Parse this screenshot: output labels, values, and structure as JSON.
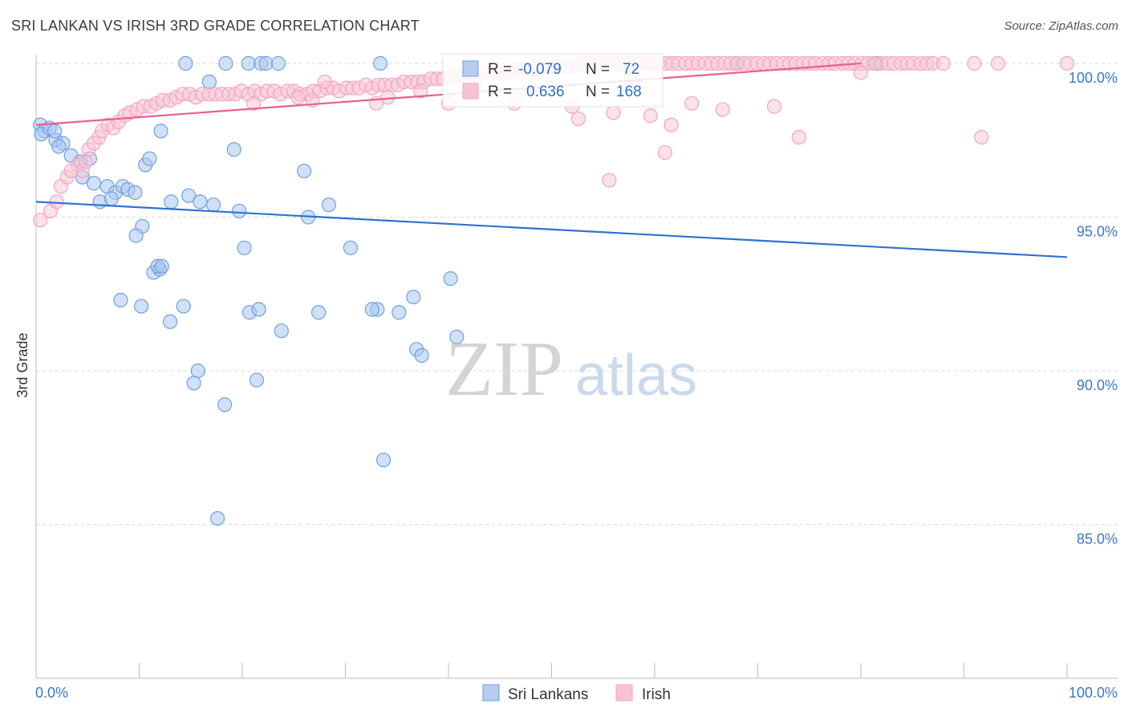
{
  "title": "SRI LANKAN VS IRISH 3RD GRADE CORRELATION CHART",
  "source": "Source: ZipAtlas.com",
  "watermark": {
    "zip": "ZIP",
    "atlas": "atlas"
  },
  "colors": {
    "blue": "#6fa0e0",
    "blue_line": "#2f72d0",
    "pink": "#f2a5bf",
    "pink_line": "#e8608c",
    "axis_text": "#3a78c8"
  },
  "stats": {
    "r_label": "R =",
    "n_label": "N =",
    "blue": {
      "r": "-0.079",
      "n": "72"
    },
    "pink": {
      "r": "0.636",
      "n": "168"
    }
  },
  "chart_data": {
    "type": "scatter",
    "ylabel": "3rd Grade",
    "xlim": [
      0,
      100
    ],
    "ylim": [
      80,
      100
    ],
    "y_ticks": [
      {
        "value": 100,
        "label": "100.0%"
      },
      {
        "value": 95,
        "label": "95.0%"
      },
      {
        "value": 90,
        "label": "90.0%"
      },
      {
        "value": 85,
        "label": "85.0%"
      }
    ],
    "x_ticks": [
      {
        "value": 0,
        "label": "0.0%"
      },
      {
        "value": 100,
        "label": "100.0%"
      }
    ],
    "legend": [
      {
        "name": "Sri Lankans",
        "color": "#6fa0e0"
      },
      {
        "name": "Irish",
        "color": "#f2a5bf"
      }
    ],
    "series": [
      {
        "name": "Sri Lankans",
        "trend": {
          "x": [
            0,
            100
          ],
          "y": [
            95.5,
            93.7
          ]
        },
        "points": [
          [
            0.4,
            98.0
          ],
          [
            0.8,
            97.8
          ],
          [
            0.5,
            97.7
          ],
          [
            1.3,
            97.9
          ],
          [
            1.9,
            97.5
          ],
          [
            2.6,
            97.4
          ],
          [
            2.2,
            97.3
          ],
          [
            3.4,
            97.0
          ],
          [
            4.3,
            96.8
          ],
          [
            5.2,
            96.9
          ],
          [
            4.5,
            96.3
          ],
          [
            5.6,
            96.1
          ],
          [
            6.9,
            96.0
          ],
          [
            7.7,
            95.8
          ],
          [
            8.4,
            96.0
          ],
          [
            8.9,
            95.9
          ],
          [
            9.6,
            95.8
          ],
          [
            6.2,
            95.5
          ],
          [
            7.3,
            95.6
          ],
          [
            10.3,
            94.7
          ],
          [
            9.7,
            94.4
          ],
          [
            13.1,
            95.5
          ],
          [
            14.8,
            95.7
          ],
          [
            15.9,
            95.5
          ],
          [
            17.2,
            95.4
          ],
          [
            19.7,
            95.2
          ],
          [
            26.4,
            95.0
          ],
          [
            28.4,
            95.4
          ],
          [
            20.2,
            94.0
          ],
          [
            30.5,
            94.0
          ],
          [
            11.4,
            93.2
          ],
          [
            12.0,
            93.3
          ],
          [
            11.8,
            93.4
          ],
          [
            12.2,
            93.4
          ],
          [
            8.2,
            92.3
          ],
          [
            10.2,
            92.1
          ],
          [
            14.3,
            92.1
          ],
          [
            13.0,
            91.6
          ],
          [
            20.7,
            91.9
          ],
          [
            21.6,
            92.0
          ],
          [
            27.4,
            91.9
          ],
          [
            33.1,
            92.0
          ],
          [
            35.2,
            91.9
          ],
          [
            36.6,
            92.4
          ],
          [
            23.8,
            91.3
          ],
          [
            32.6,
            92.0
          ],
          [
            40.2,
            93.0
          ],
          [
            40.8,
            91.1
          ],
          [
            36.9,
            90.7
          ],
          [
            37.4,
            90.5
          ],
          [
            15.7,
            90.0
          ],
          [
            21.4,
            89.7
          ],
          [
            15.3,
            89.6
          ],
          [
            18.3,
            88.9
          ],
          [
            33.7,
            87.1
          ],
          [
            17.6,
            85.2
          ],
          [
            10.6,
            96.7
          ],
          [
            11.0,
            96.9
          ],
          [
            12.1,
            97.8
          ],
          [
            16.8,
            99.4
          ],
          [
            19.2,
            97.2
          ],
          [
            26.0,
            96.5
          ],
          [
            14.5,
            100
          ],
          [
            18.4,
            100
          ],
          [
            20.6,
            100
          ],
          [
            21.8,
            100
          ],
          [
            22.3,
            100
          ],
          [
            23.5,
            100
          ],
          [
            33.4,
            100
          ],
          [
            68.0,
            100
          ],
          [
            81.5,
            100
          ],
          [
            1.8,
            97.8
          ]
        ]
      },
      {
        "name": "Irish",
        "trend": {
          "x": [
            0,
            80
          ],
          "y": [
            98.0,
            100.0
          ]
        },
        "points": [
          [
            0.4,
            94.9
          ],
          [
            1.4,
            95.2
          ],
          [
            2.0,
            95.5
          ],
          [
            2.4,
            96.0
          ],
          [
            3.0,
            96.3
          ],
          [
            4.0,
            96.7
          ],
          [
            4.5,
            96.5
          ],
          [
            5.1,
            97.2
          ],
          [
            5.6,
            97.4
          ],
          [
            6.1,
            97.6
          ],
          [
            6.4,
            97.8
          ],
          [
            7.0,
            98.0
          ],
          [
            7.5,
            97.9
          ],
          [
            8.0,
            98.1
          ],
          [
            8.6,
            98.3
          ],
          [
            9.1,
            98.4
          ],
          [
            9.8,
            98.5
          ],
          [
            10.4,
            98.6
          ],
          [
            11.1,
            98.6
          ],
          [
            11.7,
            98.7
          ],
          [
            12.3,
            98.8
          ],
          [
            13.0,
            98.8
          ],
          [
            13.6,
            98.9
          ],
          [
            14.2,
            99.0
          ],
          [
            14.9,
            99.0
          ],
          [
            15.5,
            98.9
          ],
          [
            16.1,
            99.0
          ],
          [
            16.8,
            99.0
          ],
          [
            17.4,
            99.0
          ],
          [
            18.0,
            99.0
          ],
          [
            18.7,
            99.0
          ],
          [
            19.3,
            99.0
          ],
          [
            19.9,
            99.1
          ],
          [
            20.6,
            99.0
          ],
          [
            21.2,
            99.1
          ],
          [
            21.8,
            99.0
          ],
          [
            22.4,
            99.1
          ],
          [
            23.1,
            99.1
          ],
          [
            23.7,
            99.0
          ],
          [
            24.4,
            99.1
          ],
          [
            25.0,
            99.1
          ],
          [
            25.6,
            99.0
          ],
          [
            26.3,
            99.0
          ],
          [
            26.9,
            99.1
          ],
          [
            27.5,
            99.1
          ],
          [
            28.2,
            99.2
          ],
          [
            28.8,
            99.2
          ],
          [
            29.4,
            99.1
          ],
          [
            30.1,
            99.2
          ],
          [
            30.7,
            99.2
          ],
          [
            31.3,
            99.2
          ],
          [
            32.0,
            99.3
          ],
          [
            32.6,
            99.2
          ],
          [
            33.2,
            99.3
          ],
          [
            33.8,
            99.3
          ],
          [
            34.5,
            99.3
          ],
          [
            35.1,
            99.3
          ],
          [
            35.7,
            99.4
          ],
          [
            36.4,
            99.4
          ],
          [
            37.0,
            99.4
          ],
          [
            37.6,
            99.4
          ],
          [
            38.3,
            99.5
          ],
          [
            38.9,
            99.5
          ],
          [
            39.5,
            99.5
          ],
          [
            40.2,
            99.5
          ],
          [
            40.8,
            99.6
          ],
          [
            41.4,
            99.6
          ],
          [
            42.1,
            99.6
          ],
          [
            42.7,
            99.6
          ],
          [
            43.3,
            99.7
          ],
          [
            44.0,
            99.7
          ],
          [
            44.6,
            99.7
          ],
          [
            45.2,
            99.7
          ],
          [
            45.9,
            99.7
          ],
          [
            46.5,
            99.8
          ],
          [
            47.1,
            99.8
          ],
          [
            47.8,
            99.8
          ],
          [
            48.4,
            99.8
          ],
          [
            49.0,
            99.8
          ],
          [
            49.7,
            99.9
          ],
          [
            50.3,
            99.9
          ],
          [
            50.9,
            99.9
          ],
          [
            51.6,
            99.9
          ],
          [
            52.2,
            99.9
          ],
          [
            52.8,
            100
          ],
          [
            53.5,
            100
          ],
          [
            54.1,
            100
          ],
          [
            54.7,
            100
          ],
          [
            55.4,
            100
          ],
          [
            56.0,
            100
          ],
          [
            56.6,
            100
          ],
          [
            57.3,
            100
          ],
          [
            57.9,
            100
          ],
          [
            58.5,
            100
          ],
          [
            59.2,
            100
          ],
          [
            59.8,
            100
          ],
          [
            60.4,
            100
          ],
          [
            61.1,
            100
          ],
          [
            61.7,
            100
          ],
          [
            62.3,
            100
          ],
          [
            63.0,
            100
          ],
          [
            63.6,
            100
          ],
          [
            64.2,
            100
          ],
          [
            64.9,
            100
          ],
          [
            65.5,
            100
          ],
          [
            66.1,
            100
          ],
          [
            66.8,
            100
          ],
          [
            67.4,
            100
          ],
          [
            68.0,
            100
          ],
          [
            68.7,
            100
          ],
          [
            69.3,
            100
          ],
          [
            69.9,
            100
          ],
          [
            70.6,
            100
          ],
          [
            71.2,
            100
          ],
          [
            71.8,
            100
          ],
          [
            72.5,
            100
          ],
          [
            73.1,
            100
          ],
          [
            73.7,
            100
          ],
          [
            74.4,
            100
          ],
          [
            75.0,
            100
          ],
          [
            75.6,
            100
          ],
          [
            76.3,
            100
          ],
          [
            76.9,
            100
          ],
          [
            77.5,
            100
          ],
          [
            78.2,
            100
          ],
          [
            78.8,
            100
          ],
          [
            79.4,
            100
          ],
          [
            80.1,
            100
          ],
          [
            80.7,
            100
          ],
          [
            81.3,
            100
          ],
          [
            82.0,
            100
          ],
          [
            82.6,
            100
          ],
          [
            83.2,
            100
          ],
          [
            83.9,
            100
          ],
          [
            84.5,
            100
          ],
          [
            85.1,
            100
          ],
          [
            85.8,
            100
          ],
          [
            86.4,
            100
          ],
          [
            87.0,
            100
          ],
          [
            88.0,
            100
          ],
          [
            91.0,
            100
          ],
          [
            93.3,
            100
          ],
          [
            100.0,
            100
          ],
          [
            80.0,
            99.7
          ],
          [
            37.3,
            99.1
          ],
          [
            40.0,
            98.7
          ],
          [
            46.4,
            98.7
          ],
          [
            52.0,
            98.6
          ],
          [
            52.6,
            98.2
          ],
          [
            56.0,
            98.4
          ],
          [
            58.0,
            99.5
          ],
          [
            59.6,
            98.3
          ],
          [
            61.6,
            98.0
          ],
          [
            63.6,
            98.7
          ],
          [
            66.6,
            98.5
          ],
          [
            71.6,
            98.6
          ],
          [
            74.0,
            97.6
          ],
          [
            91.7,
            97.6
          ],
          [
            61.0,
            97.1
          ],
          [
            55.6,
            96.2
          ],
          [
            21.1,
            98.7
          ],
          [
            25.4,
            98.9
          ],
          [
            26.8,
            98.8
          ],
          [
            28.0,
            99.4
          ],
          [
            33.0,
            98.7
          ],
          [
            34.1,
            98.9
          ],
          [
            4.8,
            96.8
          ],
          [
            3.4,
            96.5
          ]
        ]
      }
    ]
  }
}
